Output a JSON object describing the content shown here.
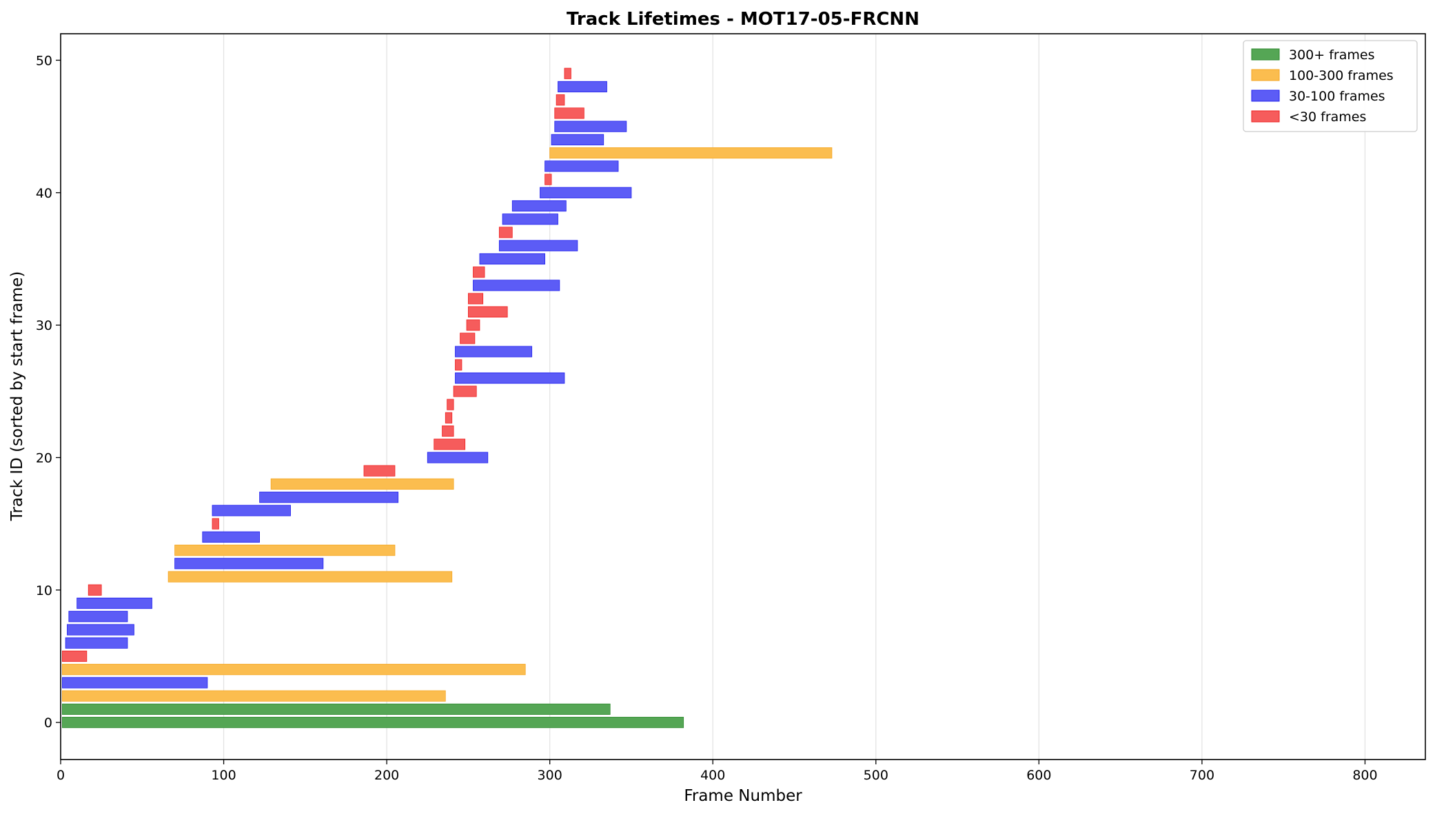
{
  "chart_data": {
    "type": "bar",
    "orientation": "horizontal",
    "title": "Track Lifetimes - MOT17-05-FRCNN",
    "xlabel": "Frame Number",
    "ylabel": "Track ID (sorted by start frame)",
    "xlim": [
      0,
      837
    ],
    "ylim": [
      -2.8,
      52
    ],
    "xticks": [
      0,
      100,
      200,
      300,
      400,
      500,
      600,
      700,
      800
    ],
    "yticks": [
      0,
      10,
      20,
      30,
      40,
      50
    ],
    "grid": "vertical lines only",
    "legend_position": "top-right",
    "categories": [
      {
        "key": "long",
        "label": "300+ frames",
        "color": "#55a655",
        "edge": "#2f8a2f"
      },
      {
        "key": "medium",
        "label": "100-300 frames",
        "color": "#fbbd4f",
        "edge": "#f5a623"
      },
      {
        "key": "short",
        "label": "30-100 frames",
        "color": "#5c5cf6",
        "edge": "#2222ee"
      },
      {
        "key": "tiny",
        "label": "<30 frames",
        "color": "#f65c5c",
        "edge": "#ee2222"
      }
    ],
    "tracks": [
      {
        "id": 0,
        "start": 1,
        "end": 382,
        "category": "long"
      },
      {
        "id": 1,
        "start": 1,
        "end": 337,
        "category": "long"
      },
      {
        "id": 2,
        "start": 1,
        "end": 236,
        "category": "medium"
      },
      {
        "id": 3,
        "start": 1,
        "end": 90,
        "category": "short"
      },
      {
        "id": 4,
        "start": 1,
        "end": 285,
        "category": "medium"
      },
      {
        "id": 5,
        "start": 1,
        "end": 16,
        "category": "tiny"
      },
      {
        "id": 6,
        "start": 3,
        "end": 41,
        "category": "short"
      },
      {
        "id": 7,
        "start": 4,
        "end": 45,
        "category": "short"
      },
      {
        "id": 8,
        "start": 5,
        "end": 41,
        "category": "short"
      },
      {
        "id": 9,
        "start": 10,
        "end": 56,
        "category": "short"
      },
      {
        "id": 10,
        "start": 17,
        "end": 25,
        "category": "tiny"
      },
      {
        "id": 11,
        "start": 66,
        "end": 240,
        "category": "medium"
      },
      {
        "id": 12,
        "start": 70,
        "end": 161,
        "category": "short"
      },
      {
        "id": 13,
        "start": 70,
        "end": 205,
        "category": "medium"
      },
      {
        "id": 14,
        "start": 87,
        "end": 122,
        "category": "short"
      },
      {
        "id": 15,
        "start": 93,
        "end": 97,
        "category": "tiny"
      },
      {
        "id": 16,
        "start": 93,
        "end": 141,
        "category": "short"
      },
      {
        "id": 17,
        "start": 122,
        "end": 207,
        "category": "short"
      },
      {
        "id": 18,
        "start": 129,
        "end": 241,
        "category": "medium"
      },
      {
        "id": 19,
        "start": 186,
        "end": 205,
        "category": "tiny"
      },
      {
        "id": 20,
        "start": 225,
        "end": 262,
        "category": "short"
      },
      {
        "id": 21,
        "start": 229,
        "end": 248,
        "category": "tiny"
      },
      {
        "id": 22,
        "start": 234,
        "end": 241,
        "category": "tiny"
      },
      {
        "id": 23,
        "start": 236,
        "end": 240,
        "category": "tiny"
      },
      {
        "id": 24,
        "start": 237,
        "end": 241,
        "category": "tiny"
      },
      {
        "id": 25,
        "start": 241,
        "end": 255,
        "category": "tiny"
      },
      {
        "id": 26,
        "start": 242,
        "end": 309,
        "category": "short"
      },
      {
        "id": 27,
        "start": 242,
        "end": 246,
        "category": "tiny"
      },
      {
        "id": 28,
        "start": 242,
        "end": 289,
        "category": "short"
      },
      {
        "id": 29,
        "start": 245,
        "end": 254,
        "category": "tiny"
      },
      {
        "id": 30,
        "start": 249,
        "end": 257,
        "category": "tiny"
      },
      {
        "id": 31,
        "start": 250,
        "end": 274,
        "category": "tiny"
      },
      {
        "id": 32,
        "start": 250,
        "end": 259,
        "category": "tiny"
      },
      {
        "id": 33,
        "start": 253,
        "end": 306,
        "category": "short"
      },
      {
        "id": 34,
        "start": 253,
        "end": 260,
        "category": "tiny"
      },
      {
        "id": 35,
        "start": 257,
        "end": 297,
        "category": "short"
      },
      {
        "id": 36,
        "start": 269,
        "end": 317,
        "category": "short"
      },
      {
        "id": 37,
        "start": 269,
        "end": 277,
        "category": "tiny"
      },
      {
        "id": 38,
        "start": 271,
        "end": 305,
        "category": "short"
      },
      {
        "id": 39,
        "start": 277,
        "end": 310,
        "category": "short"
      },
      {
        "id": 40,
        "start": 294,
        "end": 350,
        "category": "short"
      },
      {
        "id": 41,
        "start": 297,
        "end": 301,
        "category": "tiny"
      },
      {
        "id": 42,
        "start": 297,
        "end": 342,
        "category": "short"
      },
      {
        "id": 43,
        "start": 300,
        "end": 473,
        "category": "medium"
      },
      {
        "id": 44,
        "start": 301,
        "end": 333,
        "category": "short"
      },
      {
        "id": 45,
        "start": 303,
        "end": 347,
        "category": "short"
      },
      {
        "id": 46,
        "start": 303,
        "end": 321,
        "category": "tiny"
      },
      {
        "id": 47,
        "start": 304,
        "end": 309,
        "category": "tiny"
      },
      {
        "id": 48,
        "start": 305,
        "end": 335,
        "category": "short"
      },
      {
        "id": 49,
        "start": 309,
        "end": 313,
        "category": "tiny"
      }
    ]
  }
}
